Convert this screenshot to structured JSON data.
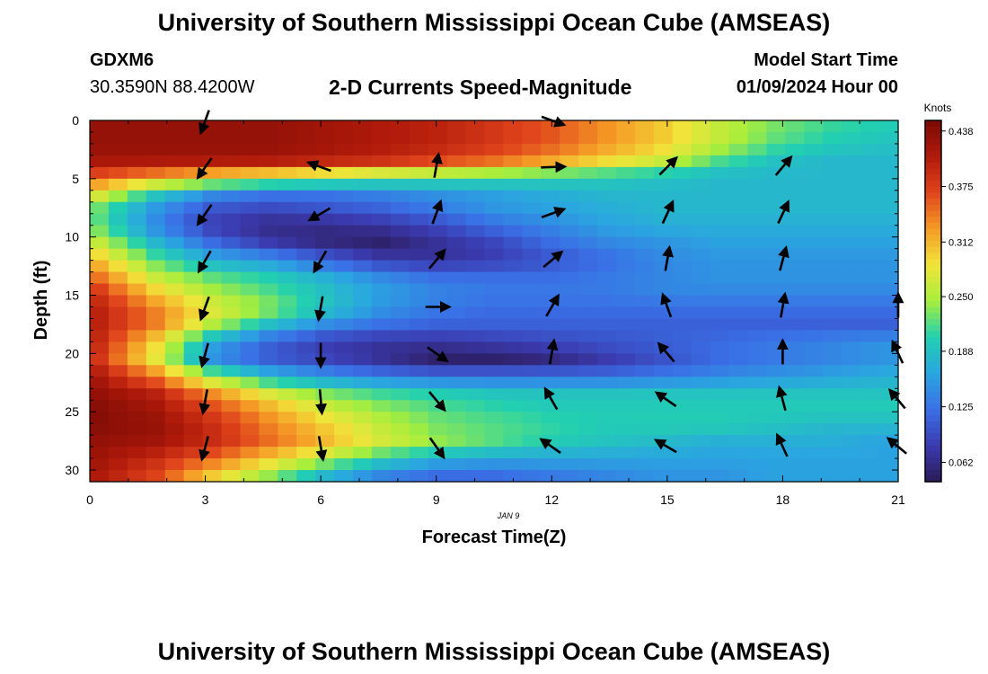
{
  "header": {
    "title_top": "University of Southern Mississippi Ocean Cube (AMSEAS)",
    "station_id": "GDXM6",
    "coords": "30.3590N  88.4200W",
    "plot_title": "2-D Currents Speed-Magnitude",
    "model_label": "Model Start Time",
    "model_time": "01/09/2024 Hour 00",
    "title_bottom": "University of Southern Mississippi Ocean Cube (AMSEAS)"
  },
  "chart_data": {
    "type": "heatmap",
    "title": "2-D Currents Speed-Magnitude",
    "xlabel": "Forecast Time(Z)",
    "ylabel": "Depth (ft)",
    "date_label": "JAN 9",
    "xlim": [
      0,
      21
    ],
    "ylim": [
      0,
      31
    ],
    "xticks": [
      0,
      3,
      6,
      9,
      12,
      15,
      18,
      21
    ],
    "yticks": [
      0,
      5,
      10,
      15,
      20,
      25,
      30
    ],
    "colorbar": {
      "unit_label": "Knots",
      "range": [
        0.04,
        0.45
      ],
      "ticks": [
        "0.438",
        "0.375",
        "0.312",
        "0.250",
        "0.188",
        "0.125",
        "0.062"
      ],
      "colors": [
        "#2b1a57",
        "#3b3bb0",
        "#3a6fe6",
        "#2aa6e0",
        "#22d0b0",
        "#a7ee3c",
        "#f1e43a",
        "#f59a26",
        "#e0441c",
        "#b01a0a",
        "#7a0a05"
      ]
    },
    "speed_knots_depth_by_time": [
      [
        0.43,
        0.43,
        0.43,
        0.43,
        0.42,
        0.41,
        0.4,
        0.38,
        0.36,
        0.33,
        0.3,
        0.26,
        0.23,
        0.21,
        0.2
      ],
      [
        0.43,
        0.43,
        0.43,
        0.43,
        0.42,
        0.41,
        0.4,
        0.38,
        0.36,
        0.33,
        0.3,
        0.26,
        0.22,
        0.2,
        0.19
      ],
      [
        0.42,
        0.42,
        0.42,
        0.42,
        0.41,
        0.4,
        0.38,
        0.36,
        0.33,
        0.3,
        0.27,
        0.22,
        0.19,
        0.18,
        0.18
      ],
      [
        0.36,
        0.33,
        0.3,
        0.28,
        0.26,
        0.24,
        0.23,
        0.22,
        0.21,
        0.2,
        0.19,
        0.18,
        0.18,
        0.18,
        0.18
      ],
      [
        0.28,
        0.2,
        0.15,
        0.13,
        0.13,
        0.14,
        0.15,
        0.16,
        0.17,
        0.18,
        0.18,
        0.18,
        0.18,
        0.18,
        0.18
      ],
      [
        0.22,
        0.15,
        0.1,
        0.09,
        0.1,
        0.11,
        0.13,
        0.15,
        0.16,
        0.17,
        0.18,
        0.18,
        0.18,
        0.18,
        0.18
      ],
      [
        0.22,
        0.14,
        0.08,
        0.06,
        0.06,
        0.07,
        0.09,
        0.12,
        0.14,
        0.16,
        0.17,
        0.17,
        0.17,
        0.17,
        0.17
      ],
      [
        0.26,
        0.18,
        0.12,
        0.08,
        0.06,
        0.05,
        0.07,
        0.09,
        0.12,
        0.14,
        0.15,
        0.16,
        0.16,
        0.16,
        0.16
      ],
      [
        0.3,
        0.22,
        0.17,
        0.15,
        0.11,
        0.08,
        0.07,
        0.08,
        0.1,
        0.12,
        0.14,
        0.15,
        0.15,
        0.15,
        0.15
      ],
      [
        0.34,
        0.26,
        0.22,
        0.2,
        0.17,
        0.14,
        0.12,
        0.12,
        0.12,
        0.13,
        0.14,
        0.15,
        0.15,
        0.15,
        0.15
      ],
      [
        0.38,
        0.3,
        0.25,
        0.22,
        0.19,
        0.16,
        0.14,
        0.13,
        0.13,
        0.13,
        0.14,
        0.14,
        0.14,
        0.14,
        0.14
      ],
      [
        0.4,
        0.34,
        0.28,
        0.24,
        0.19,
        0.15,
        0.13,
        0.12,
        0.12,
        0.12,
        0.12,
        0.12,
        0.12,
        0.12,
        0.12
      ],
      [
        0.4,
        0.34,
        0.25,
        0.18,
        0.14,
        0.12,
        0.11,
        0.11,
        0.11,
        0.11,
        0.11,
        0.11,
        0.11,
        0.11,
        0.11
      ],
      [
        0.39,
        0.29,
        0.16,
        0.11,
        0.08,
        0.07,
        0.07,
        0.08,
        0.09,
        0.1,
        0.11,
        0.12,
        0.13,
        0.14,
        0.15
      ],
      [
        0.38,
        0.28,
        0.15,
        0.11,
        0.09,
        0.07,
        0.05,
        0.05,
        0.06,
        0.08,
        0.1,
        0.12,
        0.13,
        0.14,
        0.15
      ],
      [
        0.41,
        0.34,
        0.24,
        0.18,
        0.15,
        0.13,
        0.12,
        0.12,
        0.12,
        0.12,
        0.13,
        0.14,
        0.15,
        0.16,
        0.17
      ],
      [
        0.43,
        0.4,
        0.33,
        0.27,
        0.23,
        0.21,
        0.2,
        0.19,
        0.19,
        0.19,
        0.19,
        0.19,
        0.19,
        0.19,
        0.19
      ],
      [
        0.44,
        0.42,
        0.37,
        0.32,
        0.27,
        0.24,
        0.22,
        0.21,
        0.2,
        0.2,
        0.2,
        0.2,
        0.2,
        0.2,
        0.2
      ],
      [
        0.44,
        0.43,
        0.39,
        0.34,
        0.3,
        0.26,
        0.23,
        0.22,
        0.21,
        0.2,
        0.2,
        0.2,
        0.19,
        0.18,
        0.18
      ],
      [
        0.43,
        0.42,
        0.39,
        0.35,
        0.31,
        0.27,
        0.24,
        0.22,
        0.2,
        0.19,
        0.18,
        0.17,
        0.17,
        0.17,
        0.16
      ],
      [
        0.42,
        0.39,
        0.35,
        0.3,
        0.25,
        0.2,
        0.17,
        0.16,
        0.16,
        0.16,
        0.16,
        0.16,
        0.16,
        0.16,
        0.16
      ],
      [
        0.41,
        0.37,
        0.3,
        0.24,
        0.18,
        0.14,
        0.12,
        0.12,
        0.13,
        0.14,
        0.15,
        0.15,
        0.16,
        0.16,
        0.16
      ]
    ],
    "vectors": [
      {
        "t": 3,
        "d": 0,
        "angle": 200
      },
      {
        "t": 3,
        "d": 4,
        "angle": 215
      },
      {
        "t": 3,
        "d": 8,
        "angle": 215
      },
      {
        "t": 3,
        "d": 12,
        "angle": 210
      },
      {
        "t": 3,
        "d": 16,
        "angle": 200
      },
      {
        "t": 3,
        "d": 20,
        "angle": 195
      },
      {
        "t": 3,
        "d": 24,
        "angle": 190
      },
      {
        "t": 3,
        "d": 28,
        "angle": 195
      },
      {
        "t": 6,
        "d": 4,
        "angle": 290
      },
      {
        "t": 6,
        "d": 8,
        "angle": 240
      },
      {
        "t": 6,
        "d": 12,
        "angle": 210
      },
      {
        "t": 6,
        "d": 16,
        "angle": 190
      },
      {
        "t": 6,
        "d": 20,
        "angle": 180
      },
      {
        "t": 6,
        "d": 24,
        "angle": 175
      },
      {
        "t": 6,
        "d": 28,
        "angle": 170
      },
      {
        "t": 9,
        "d": 4,
        "angle": 10
      },
      {
        "t": 9,
        "d": 8,
        "angle": 20
      },
      {
        "t": 9,
        "d": 12,
        "angle": 40
      },
      {
        "t": 9,
        "d": 16,
        "angle": 90
      },
      {
        "t": 9,
        "d": 20,
        "angle": 125
      },
      {
        "t": 9,
        "d": 24,
        "angle": 140
      },
      {
        "t": 9,
        "d": 28,
        "angle": 145
      },
      {
        "t": 12,
        "d": 0,
        "angle": 110
      },
      {
        "t": 12,
        "d": 4,
        "angle": 88
      },
      {
        "t": 12,
        "d": 8,
        "angle": 70
      },
      {
        "t": 12,
        "d": 12,
        "angle": 50
      },
      {
        "t": 12,
        "d": 16,
        "angle": 30
      },
      {
        "t": 12,
        "d": 20,
        "angle": 10
      },
      {
        "t": 12,
        "d": 24,
        "angle": 330
      },
      {
        "t": 12,
        "d": 28,
        "angle": 305
      },
      {
        "t": 15,
        "d": 4,
        "angle": 45
      },
      {
        "t": 15,
        "d": 8,
        "angle": 25
      },
      {
        "t": 15,
        "d": 12,
        "angle": 10
      },
      {
        "t": 15,
        "d": 16,
        "angle": 340
      },
      {
        "t": 15,
        "d": 20,
        "angle": 320
      },
      {
        "t": 15,
        "d": 24,
        "angle": 305
      },
      {
        "t": 15,
        "d": 28,
        "angle": 300
      },
      {
        "t": 18,
        "d": 4,
        "angle": 40
      },
      {
        "t": 18,
        "d": 8,
        "angle": 25
      },
      {
        "t": 18,
        "d": 12,
        "angle": 15
      },
      {
        "t": 18,
        "d": 16,
        "angle": 10
      },
      {
        "t": 18,
        "d": 20,
        "angle": 0
      },
      {
        "t": 18,
        "d": 24,
        "angle": 345
      },
      {
        "t": 18,
        "d": 28,
        "angle": 335
      },
      {
        "t": 21,
        "d": 16,
        "angle": 0
      },
      {
        "t": 21,
        "d": 20,
        "angle": 335
      },
      {
        "t": 21,
        "d": 24,
        "angle": 320
      },
      {
        "t": 21,
        "d": 28,
        "angle": 310
      }
    ]
  }
}
